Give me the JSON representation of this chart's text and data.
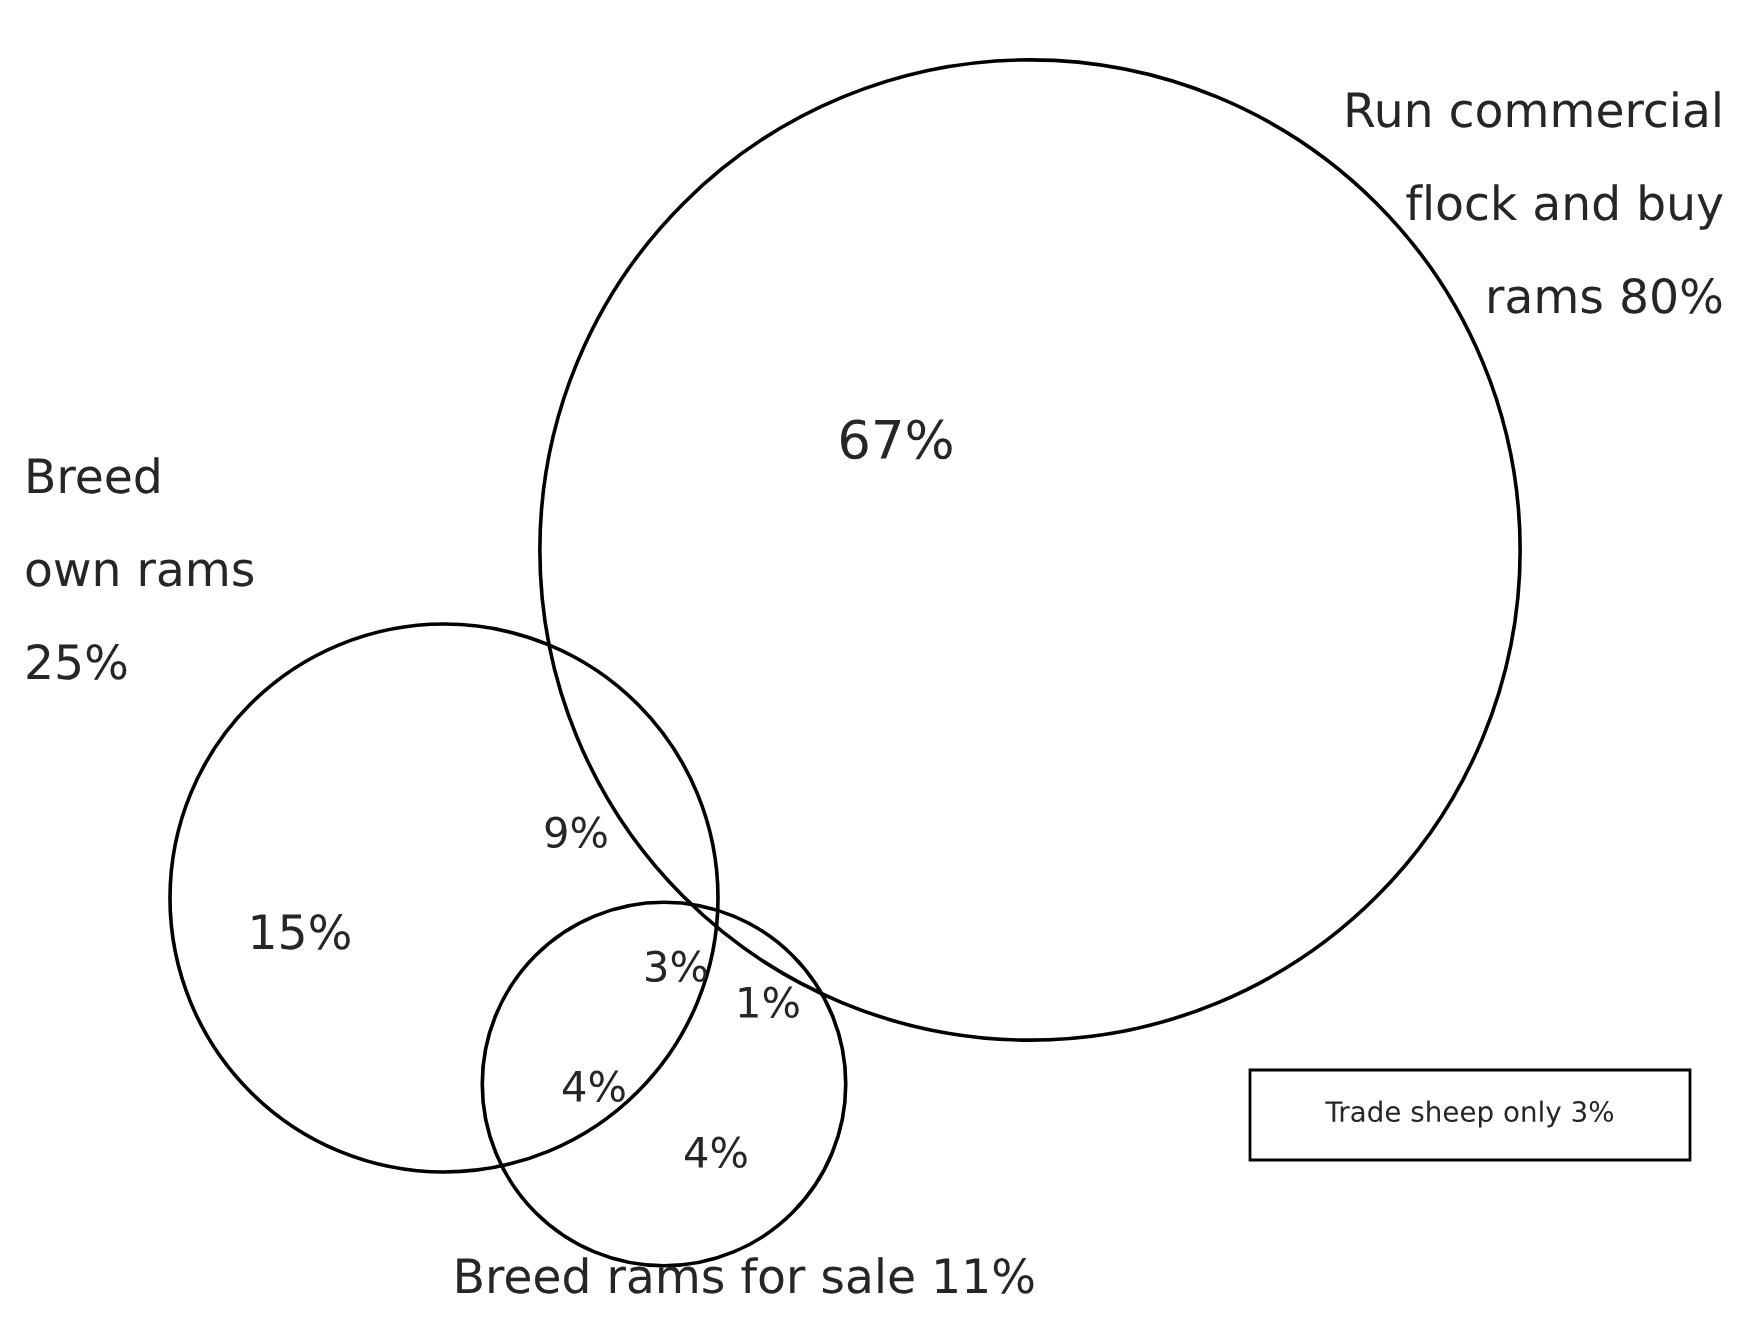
{
  "chart_data": {
    "type": "other",
    "categories": [
      "Run commercial\nflock and buy\nrams",
      "Breed\nown rams",
      "Breed rams for sale"
    ],
    "values": [
      80,
      25,
      11
    ],
    "value_labels": [
      "80%",
      "25%",
      "11%"
    ],
    "annotations": [
      "67%",
      "15%",
      "9%",
      "3%",
      "1%",
      "4%",
      "4%",
      "Trade sheep only 3%"
    ]
  }
}
